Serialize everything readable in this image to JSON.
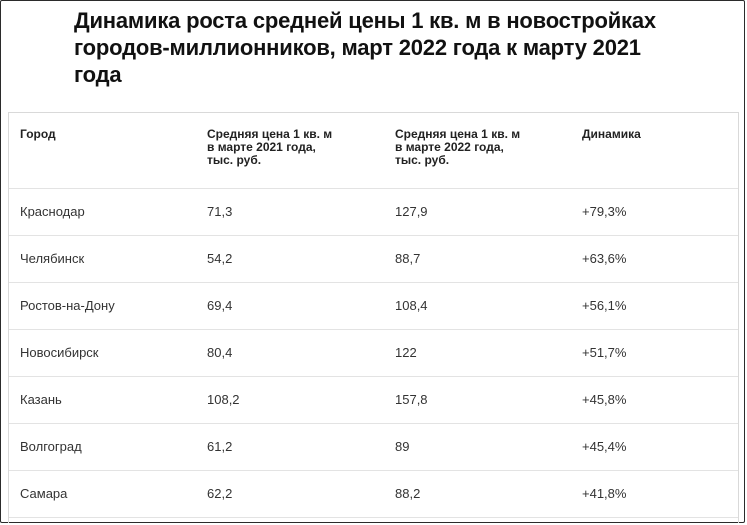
{
  "title": "Динамика роста средней цены 1 кв. м в новостройках городов-миллионников, март 2022 года к марту 2021 года",
  "table": {
    "headers": [
      "Город",
      "Средняя цена 1 кв. м\nв марте 2021 года,\nтыс. руб.",
      "Средняя цена 1 кв. м\nв марте 2022 года,\nтыс. руб.",
      "Динамика"
    ],
    "rows": [
      [
        "Краснодар",
        "71,3",
        "127,9",
        "+79,3%"
      ],
      [
        "Челябинск",
        "54,2",
        "88,7",
        "+63,6%"
      ],
      [
        "Ростов-на-Дону",
        "69,4",
        "108,4",
        "+56,1%"
      ],
      [
        "Новосибирск",
        "80,4",
        "122",
        "+51,7%"
      ],
      [
        "Казань",
        "108,2",
        "157,8",
        "+45,8%"
      ],
      [
        "Волгоград",
        "61,2",
        "89",
        "+45,4%"
      ],
      [
        "Самара",
        "62,2",
        "88,2",
        "+41,8%"
      ]
    ]
  }
}
